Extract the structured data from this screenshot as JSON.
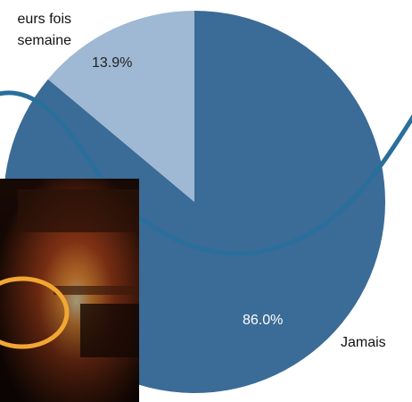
{
  "chart_data": {
    "type": "pie",
    "slices": [
      {
        "label": "Jamais",
        "value": 86.0,
        "display": "86.0%",
        "color": "#3b6b97"
      },
      {
        "label": "Plusieurs fois par semaine",
        "value": 13.9,
        "display": "13.9%",
        "color": "#9fb8d3"
      }
    ],
    "legend_labels": {
      "minor_line1": "eurs fois",
      "minor_line2": "semaine",
      "major": "Jamais"
    },
    "decorations": {
      "wave_color": "#2a6f9c",
      "highlight_circle_color": "#f2a733",
      "photo": "dark room with glowing orange light"
    }
  }
}
